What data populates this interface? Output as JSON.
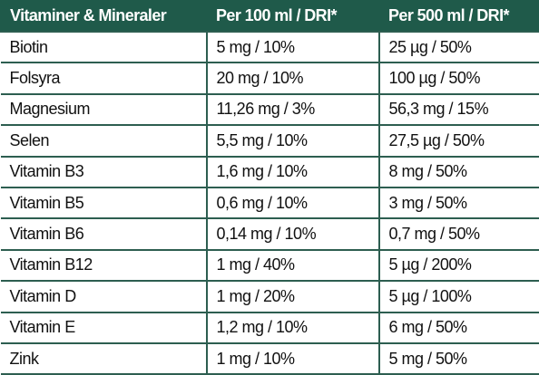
{
  "table": {
    "header": [
      "Vitaminer & Mineraler",
      "Per 100 ml / DRI*",
      "Per 500 ml / DRI*"
    ],
    "rows": [
      [
        "Biotin",
        "5 mg / 10%",
        "25 µg / 50%"
      ],
      [
        "Folsyra",
        "20 mg / 10%",
        "100 µg / 50%"
      ],
      [
        "Magnesium",
        "11,26 mg / 3%",
        "56,3 mg / 15%"
      ],
      [
        "Selen",
        "5,5 mg / 10%",
        "27,5 µg / 50%"
      ],
      [
        "Vitamin B3",
        "1,6 mg / 10%",
        "8 mg / 50%"
      ],
      [
        "Vitamin B5",
        "0,6 mg / 10%",
        "3 mg / 50%"
      ],
      [
        "Vitamin B6",
        "0,14 mg / 10%",
        "0,7 mg / 50%"
      ],
      [
        "Vitamin B12",
        "1 mg / 40%",
        "5 µg / 200%"
      ],
      [
        "Vitamin D",
        "1 mg / 20%",
        "5 µg / 100%"
      ],
      [
        "Vitamin E",
        "1,2 mg / 10%",
        "6 mg / 50%"
      ],
      [
        "Zink",
        "1 mg / 10%",
        "5 mg / 50%"
      ]
    ]
  }
}
